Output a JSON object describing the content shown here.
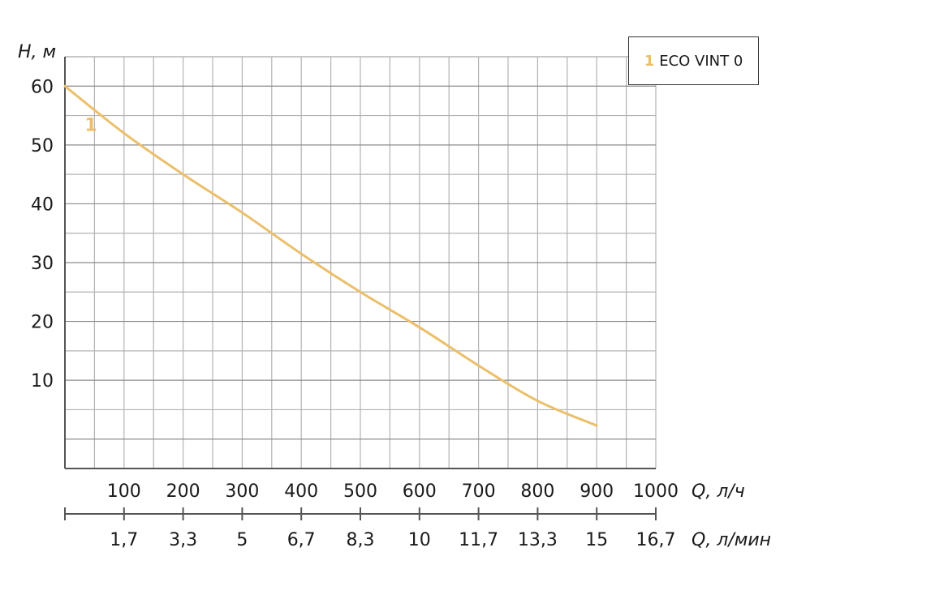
{
  "chart_data": {
    "type": "line",
    "y_label": "H, м",
    "y_ticks": [
      10,
      20,
      30,
      40,
      50,
      60
    ],
    "ylim": [
      -5,
      65
    ],
    "x_label": "Q, л/ч",
    "x_ticks": [
      100,
      200,
      300,
      400,
      500,
      600,
      700,
      800,
      900,
      1000
    ],
    "xlim": [
      0,
      1000
    ],
    "x2_label": "Q, л/мин",
    "x2_ticks": [
      "1,7",
      "3,3",
      "5",
      "6,7",
      "8,3",
      "10",
      "11,7",
      "13,3",
      "15",
      "16,7"
    ],
    "grid": true,
    "legend_position": "top-right",
    "series": [
      {
        "name": "ECO VINT 0",
        "label": "1",
        "color": "#EBBF6A",
        "x": [
          0,
          100,
          200,
          300,
          400,
          500,
          600,
          700,
          800,
          900
        ],
        "y": [
          60,
          52,
          45,
          38.5,
          31.5,
          25,
          19,
          12.5,
          6.5,
          2.3
        ]
      }
    ]
  },
  "legend": {
    "number": "1",
    "name": "ECO VINT 0",
    "number_color": "#EBBF6A"
  }
}
